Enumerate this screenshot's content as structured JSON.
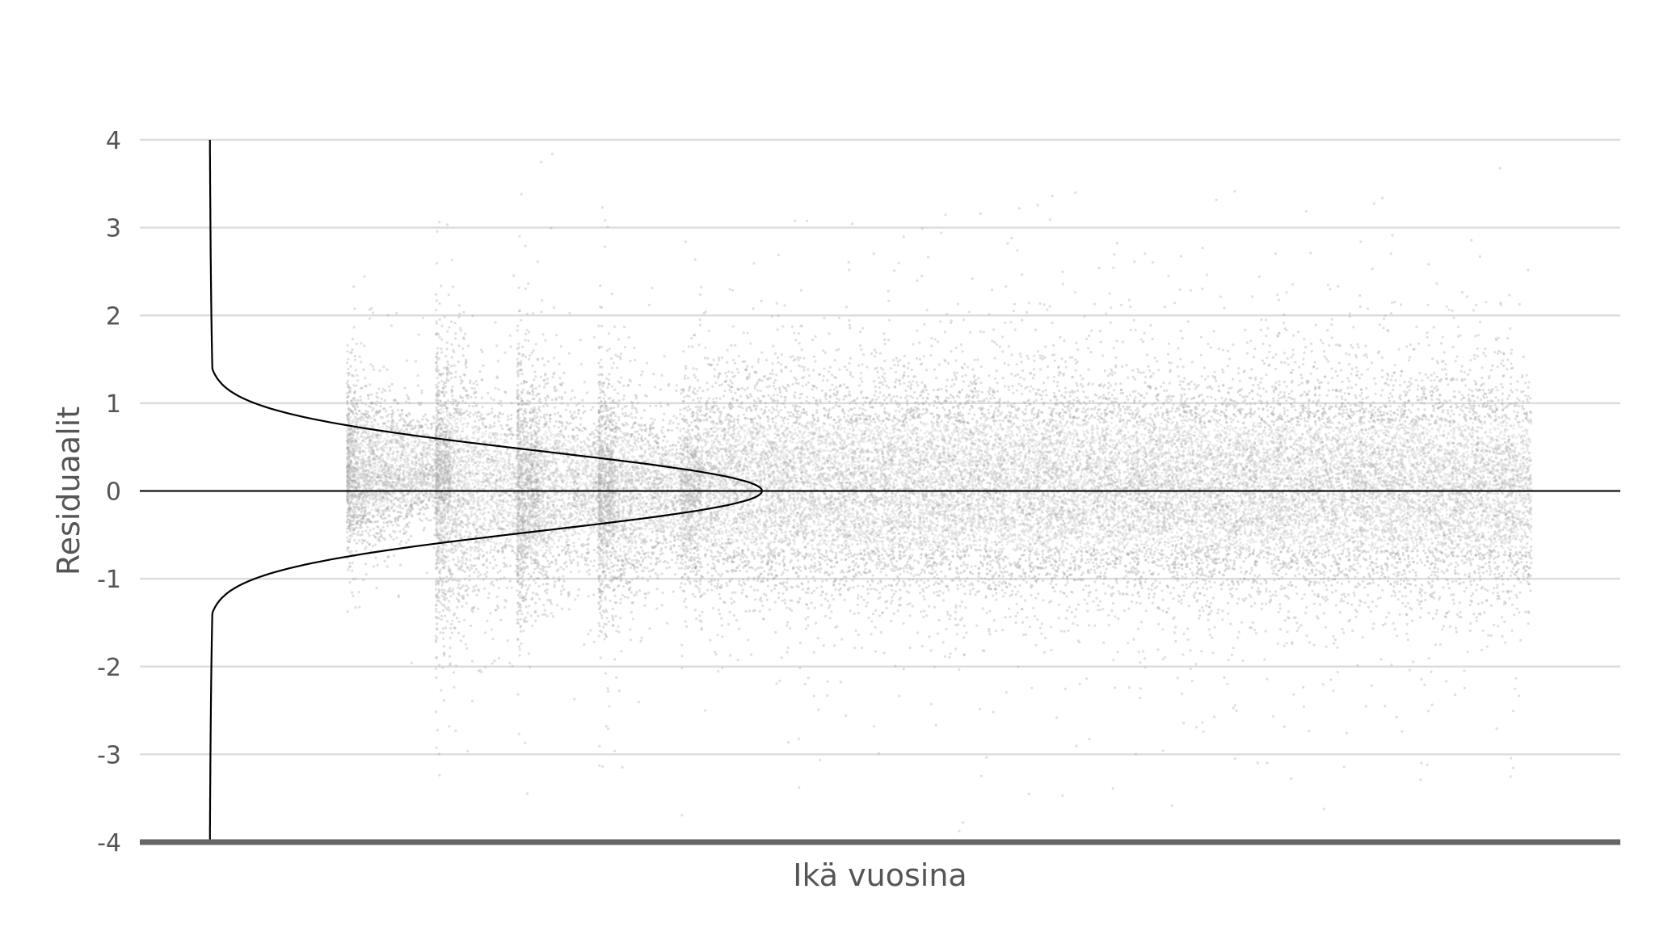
{
  "chart_data": {
    "type": "scatter",
    "xlabel": "Ikä vuosina",
    "ylabel": "Residuaalit",
    "ylim": [
      -4,
      4
    ],
    "y_ticks": [
      {
        "value": 4,
        "label": "4"
      },
      {
        "value": 3,
        "label": "3"
      },
      {
        "value": 2,
        "label": "2"
      },
      {
        "value": 1,
        "label": "1"
      },
      {
        "value": 0,
        "label": "0"
      },
      {
        "value": -1,
        "label": "-1"
      },
      {
        "value": -2,
        "label": "-2"
      },
      {
        "value": -3,
        "label": "-3"
      },
      {
        "value": -4,
        "label": "-4"
      }
    ],
    "x_ticks": [],
    "grid": true,
    "reference_line_y": 0,
    "point_color": "#a6a6a6",
    "gridline_color": "#dddddd",
    "density_curve_color": "#000000",
    "baseline_color": "#666666",
    "point_clusters": [
      {
        "x_start": 0.14,
        "x_end": 0.21,
        "center": 0.2,
        "spread_up": 1.0,
        "spread_down": 0.75
      },
      {
        "x_start": 0.2,
        "x_end": 0.27,
        "center": 0.0,
        "spread_up": 1.5,
        "spread_down": 1.4
      },
      {
        "x_start": 0.255,
        "x_end": 0.32,
        "center": 0.0,
        "spread_up": 1.3,
        "spread_down": 1.3
      },
      {
        "x_start": 0.31,
        "x_end": 0.38,
        "center": 0.0,
        "spread_up": 1.1,
        "spread_down": 1.3
      },
      {
        "x_start": 0.365,
        "x_end": 0.94,
        "center": 0.05,
        "spread_up": 1.1,
        "spread_down": 1.1
      }
    ],
    "residual_density": {
      "description": "normal",
      "mean": 0.0,
      "sd": 0.45
    }
  }
}
